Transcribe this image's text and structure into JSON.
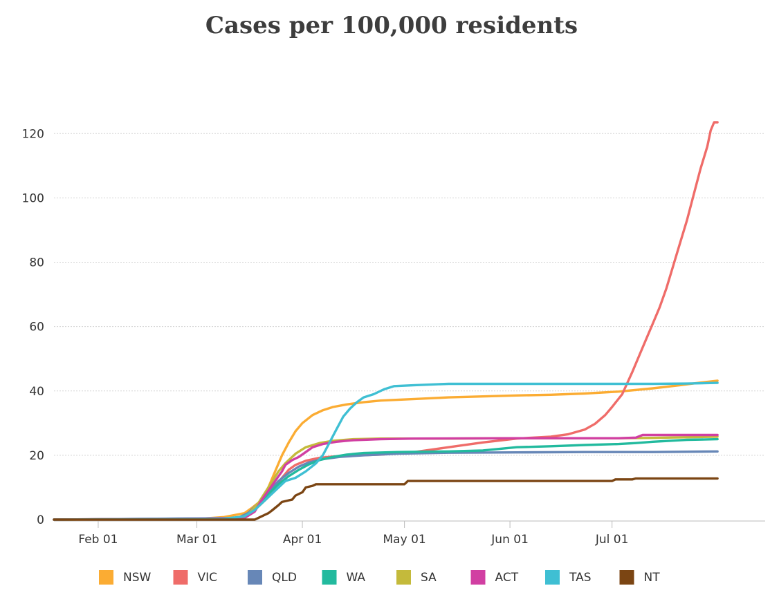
{
  "chart_data": {
    "type": "line",
    "title": "Cases per 100,000 residents",
    "xlabel": "",
    "ylabel": "",
    "ylim": [
      0,
      125
    ],
    "yticks": [
      0,
      20,
      40,
      60,
      80,
      100,
      120
    ],
    "x_domain_days": [
      -6,
      203
    ],
    "x_domain_note": "days since Jan 25",
    "xticks": [
      {
        "day": 7,
        "label": "Feb 01"
      },
      {
        "day": 36,
        "label": "Mar 01"
      },
      {
        "day": 67,
        "label": "Apr 01"
      },
      {
        "day": 97,
        "label": "May 01"
      },
      {
        "day": 128,
        "label": "Jun 01"
      },
      {
        "day": 158,
        "label": "Jul 01"
      }
    ],
    "grid": true,
    "legend_position": "bottom",
    "series": [
      {
        "name": "NSW",
        "color": "#FBAC33",
        "points": [
          [
            -6,
            0
          ],
          [
            36,
            0.2
          ],
          [
            44,
            0.8
          ],
          [
            50,
            2
          ],
          [
            52,
            3.5
          ],
          [
            55,
            6
          ],
          [
            57,
            10
          ],
          [
            59,
            15
          ],
          [
            61,
            20
          ],
          [
            63,
            24
          ],
          [
            65,
            27.5
          ],
          [
            67,
            30
          ],
          [
            70,
            32.5
          ],
          [
            73,
            34
          ],
          [
            76,
            35
          ],
          [
            80,
            35.8
          ],
          [
            85,
            36.5
          ],
          [
            90,
            37
          ],
          [
            100,
            37.5
          ],
          [
            110,
            38
          ],
          [
            120,
            38.3
          ],
          [
            130,
            38.6
          ],
          [
            140,
            38.8
          ],
          [
            150,
            39.2
          ],
          [
            160,
            39.8
          ],
          [
            170,
            40.8
          ],
          [
            178,
            41.8
          ],
          [
            184,
            42.6
          ],
          [
            189,
            43.2
          ]
        ]
      },
      {
        "name": "VIC",
        "color": "#EF6C69",
        "points": [
          [
            -6,
            0
          ],
          [
            48,
            0.3
          ],
          [
            51,
            1.5
          ],
          [
            54,
            4
          ],
          [
            57,
            7
          ],
          [
            59,
            10
          ],
          [
            61,
            13
          ],
          [
            63,
            15.5
          ],
          [
            65,
            17
          ],
          [
            68,
            18.3
          ],
          [
            72,
            19.2
          ],
          [
            78,
            19.8
          ],
          [
            90,
            20.2
          ],
          [
            100,
            21
          ],
          [
            110,
            22.5
          ],
          [
            120,
            24
          ],
          [
            130,
            25.2
          ],
          [
            140,
            25.8
          ],
          [
            145,
            26.5
          ],
          [
            150,
            28
          ],
          [
            153,
            29.8
          ],
          [
            156,
            32.5
          ],
          [
            158,
            35
          ],
          [
            161,
            39
          ],
          [
            164,
            46
          ],
          [
            166,
            51
          ],
          [
            168,
            56
          ],
          [
            170,
            61
          ],
          [
            172,
            66
          ],
          [
            174,
            72
          ],
          [
            176,
            79
          ],
          [
            178,
            86
          ],
          [
            180,
            93
          ],
          [
            182,
            101
          ],
          [
            184,
            109
          ],
          [
            186,
            116
          ],
          [
            187,
            121
          ],
          [
            188,
            123.5
          ],
          [
            189,
            123.5
          ]
        ]
      },
      {
        "name": "QLD",
        "color": "#6787B7",
        "points": [
          [
            -6,
            0
          ],
          [
            48,
            0.5
          ],
          [
            51,
            2
          ],
          [
            54,
            5
          ],
          [
            57,
            8.5
          ],
          [
            60,
            12
          ],
          [
            63,
            14.5
          ],
          [
            66,
            16.5
          ],
          [
            69,
            17.8
          ],
          [
            73,
            18.8
          ],
          [
            78,
            19.5
          ],
          [
            85,
            20
          ],
          [
            95,
            20.5
          ],
          [
            110,
            20.8
          ],
          [
            130,
            20.9
          ],
          [
            150,
            21
          ],
          [
            170,
            21
          ],
          [
            189,
            21.2
          ]
        ]
      },
      {
        "name": "WA",
        "color": "#22BA9E",
        "points": [
          [
            -6,
            0
          ],
          [
            48,
            0.3
          ],
          [
            51,
            1.5
          ],
          [
            54,
            4.5
          ],
          [
            57,
            8
          ],
          [
            60,
            11
          ],
          [
            63,
            13.5
          ],
          [
            66,
            15.5
          ],
          [
            69,
            17.2
          ],
          [
            72,
            18.5
          ],
          [
            76,
            19.5
          ],
          [
            80,
            20.2
          ],
          [
            85,
            20.7
          ],
          [
            95,
            21
          ],
          [
            110,
            21.2
          ],
          [
            120,
            21.5
          ],
          [
            125,
            22
          ],
          [
            130,
            22.5
          ],
          [
            140,
            22.8
          ],
          [
            150,
            23.2
          ],
          [
            160,
            23.5
          ],
          [
            165,
            23.8
          ],
          [
            170,
            24.2
          ],
          [
            175,
            24.5
          ],
          [
            180,
            24.8
          ],
          [
            189,
            25
          ]
        ]
      },
      {
        "name": "SA",
        "color": "#C4BA3B",
        "points": [
          [
            -6,
            0
          ],
          [
            48,
            0.3
          ],
          [
            51,
            1.5
          ],
          [
            54,
            5
          ],
          [
            57,
            10
          ],
          [
            60,
            15
          ],
          [
            62,
            17.5
          ],
          [
            65,
            20.5
          ],
          [
            68,
            22.5
          ],
          [
            72,
            23.8
          ],
          [
            76,
            24.5
          ],
          [
            82,
            25
          ],
          [
            90,
            25.2
          ],
          [
            110,
            25.2
          ],
          [
            130,
            25.3
          ],
          [
            160,
            25.3
          ],
          [
            170,
            25.4
          ],
          [
            189,
            25.8
          ]
        ]
      },
      {
        "name": "ACT",
        "color": "#D13FA2",
        "points": [
          [
            -6,
            0
          ],
          [
            50,
            0.5
          ],
          [
            53,
            2.5
          ],
          [
            55,
            6
          ],
          [
            57,
            9
          ],
          [
            59,
            12
          ],
          [
            61,
            15
          ],
          [
            62,
            17
          ],
          [
            64,
            18.5
          ],
          [
            66,
            19.5
          ],
          [
            68,
            21
          ],
          [
            70,
            22.5
          ],
          [
            73,
            23.5
          ],
          [
            77,
            24.2
          ],
          [
            82,
            24.7
          ],
          [
            90,
            25
          ],
          [
            100,
            25.2
          ],
          [
            130,
            25.3
          ],
          [
            160,
            25.3
          ],
          [
            165,
            25.5
          ],
          [
            167,
            26.3
          ],
          [
            189,
            26.3
          ]
        ]
      },
      {
        "name": "TAS",
        "color": "#3FBFD3",
        "points": [
          [
            -6,
            0
          ],
          [
            44,
            0.3
          ],
          [
            50,
            1
          ],
          [
            53,
            3
          ],
          [
            56,
            6
          ],
          [
            59,
            9
          ],
          [
            62,
            12
          ],
          [
            65,
            13
          ],
          [
            68,
            15
          ],
          [
            71,
            17.5
          ],
          [
            73,
            20
          ],
          [
            75,
            24
          ],
          [
            77,
            28
          ],
          [
            79,
            32
          ],
          [
            81,
            34.5
          ],
          [
            83,
            36.5
          ],
          [
            85,
            38
          ],
          [
            88,
            39
          ],
          [
            91,
            40.5
          ],
          [
            94,
            41.5
          ],
          [
            100,
            41.8
          ],
          [
            105,
            42
          ],
          [
            110,
            42.2
          ],
          [
            130,
            42.2
          ],
          [
            170,
            42.2
          ],
          [
            180,
            42.3
          ],
          [
            189,
            42.5
          ]
        ]
      },
      {
        "name": "NT",
        "color": "#7B4513",
        "points": [
          [
            -6,
            0
          ],
          [
            53,
            0
          ],
          [
            54,
            0.5
          ],
          [
            55,
            1
          ],
          [
            57,
            2
          ],
          [
            58,
            2.8
          ],
          [
            60,
            4.5
          ],
          [
            61,
            5.5
          ],
          [
            63,
            6
          ],
          [
            64,
            6.2
          ],
          [
            65,
            7.5
          ],
          [
            67,
            8.5
          ],
          [
            68,
            10
          ],
          [
            70,
            10.5
          ],
          [
            71,
            11
          ],
          [
            90,
            11
          ],
          [
            97,
            11
          ],
          [
            98,
            12
          ],
          [
            120,
            12
          ],
          [
            150,
            12
          ],
          [
            158,
            12
          ],
          [
            159,
            12.5
          ],
          [
            164,
            12.5
          ],
          [
            165,
            12.8
          ],
          [
            189,
            12.8
          ]
        ]
      }
    ]
  }
}
